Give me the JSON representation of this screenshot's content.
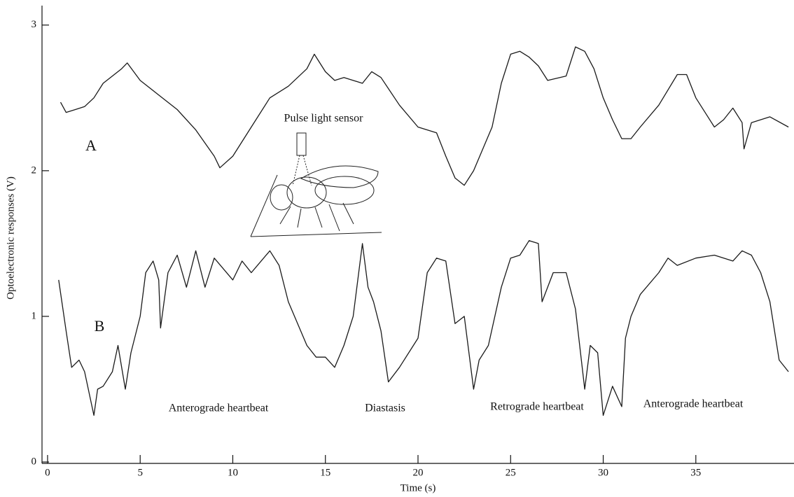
{
  "chart_data": {
    "type": "line",
    "x_label": "Time (s)",
    "y_label": "Optoelectronic responses (V)",
    "xlim": [
      -0.3,
      40.3
    ],
    "ylim": [
      0,
      3.1
    ],
    "xticks": [
      0,
      5,
      10,
      15,
      20,
      25,
      30,
      35
    ],
    "yticks": [
      0,
      1,
      2,
      3
    ],
    "annotations": [
      "Pulse light sensor",
      "Anterograde heartbeat",
      "Diastasis",
      "Retrograde heartbeat",
      "Anterograde heartbeat"
    ],
    "series": [
      {
        "name": "A",
        "color": "#1a1a1a",
        "x": [
          0.7,
          1,
          1.5,
          2,
          2.5,
          3,
          3.5,
          4,
          4.3,
          5,
          6,
          7,
          8,
          9,
          9.3,
          10,
          11,
          12,
          13,
          14,
          14.4,
          15,
          15.5,
          16,
          17,
          17.5,
          18,
          19,
          20,
          21,
          21.5,
          22,
          22.5,
          23,
          24,
          24.5,
          25,
          25.5,
          26,
          26.5,
          27,
          28,
          28.5,
          29,
          29.5,
          30,
          30.5,
          31,
          31.5,
          32,
          33,
          34,
          34.5,
          35,
          36,
          36.5,
          37,
          37.5,
          37.6,
          38,
          39,
          40
        ],
        "values": [
          2.47,
          2.4,
          2.42,
          2.44,
          2.5,
          2.6,
          2.65,
          2.7,
          2.74,
          2.62,
          2.52,
          2.42,
          2.28,
          2.1,
          2.02,
          2.1,
          2.3,
          2.5,
          2.58,
          2.7,
          2.8,
          2.68,
          2.62,
          2.64,
          2.6,
          2.68,
          2.64,
          2.45,
          2.3,
          2.26,
          2.1,
          1.95,
          1.9,
          2.0,
          2.3,
          2.6,
          2.8,
          2.82,
          2.78,
          2.72,
          2.62,
          2.65,
          2.85,
          2.82,
          2.7,
          2.5,
          2.35,
          2.22,
          2.22,
          2.3,
          2.45,
          2.66,
          2.66,
          2.5,
          2.3,
          2.35,
          2.43,
          2.33,
          2.15,
          2.33,
          2.37,
          2.3
        ]
      },
      {
        "name": "B",
        "color": "#1a1a1a",
        "x": [
          0.6,
          1,
          1.3,
          1.7,
          2,
          2.5,
          2.7,
          3,
          3.5,
          3.8,
          4.2,
          4.5,
          5,
          5.3,
          5.7,
          6,
          6.1,
          6.5,
          7,
          7.5,
          8,
          8.5,
          9,
          10,
          10.5,
          11,
          12,
          12.5,
          13,
          14,
          14.5,
          15,
          15.5,
          16,
          16.5,
          17,
          17.3,
          17.6,
          18,
          18.4,
          19,
          20,
          20.5,
          21,
          21.5,
          22,
          22.5,
          23,
          23.3,
          23.8,
          24.5,
          25,
          25.5,
          26,
          26.5,
          26.7,
          27.3,
          28,
          28.5,
          29,
          29.3,
          29.7,
          30,
          30.5,
          31,
          31.2,
          31.5,
          32,
          33,
          33.5,
          34,
          35,
          36,
          37,
          37.5,
          38,
          38.5,
          39,
          39.5,
          40
        ],
        "values": [
          1.25,
          0.9,
          0.65,
          0.7,
          0.62,
          0.32,
          0.5,
          0.52,
          0.62,
          0.8,
          0.5,
          0.75,
          1.0,
          1.3,
          1.38,
          1.25,
          0.92,
          1.3,
          1.42,
          1.2,
          1.45,
          1.2,
          1.4,
          1.25,
          1.38,
          1.3,
          1.45,
          1.35,
          1.1,
          0.8,
          0.72,
          0.72,
          0.65,
          0.8,
          1.0,
          1.5,
          1.2,
          1.1,
          0.9,
          0.55,
          0.65,
          0.85,
          1.3,
          1.4,
          1.38,
          0.95,
          1.0,
          0.5,
          0.7,
          0.8,
          1.2,
          1.4,
          1.42,
          1.52,
          1.5,
          1.1,
          1.3,
          1.3,
          1.05,
          0.5,
          0.8,
          0.75,
          0.32,
          0.52,
          0.38,
          0.85,
          1.0,
          1.15,
          1.3,
          1.4,
          1.35,
          1.4,
          1.42,
          1.38,
          1.45,
          1.42,
          1.3,
          1.1,
          0.7,
          0.62
        ]
      }
    ]
  }
}
